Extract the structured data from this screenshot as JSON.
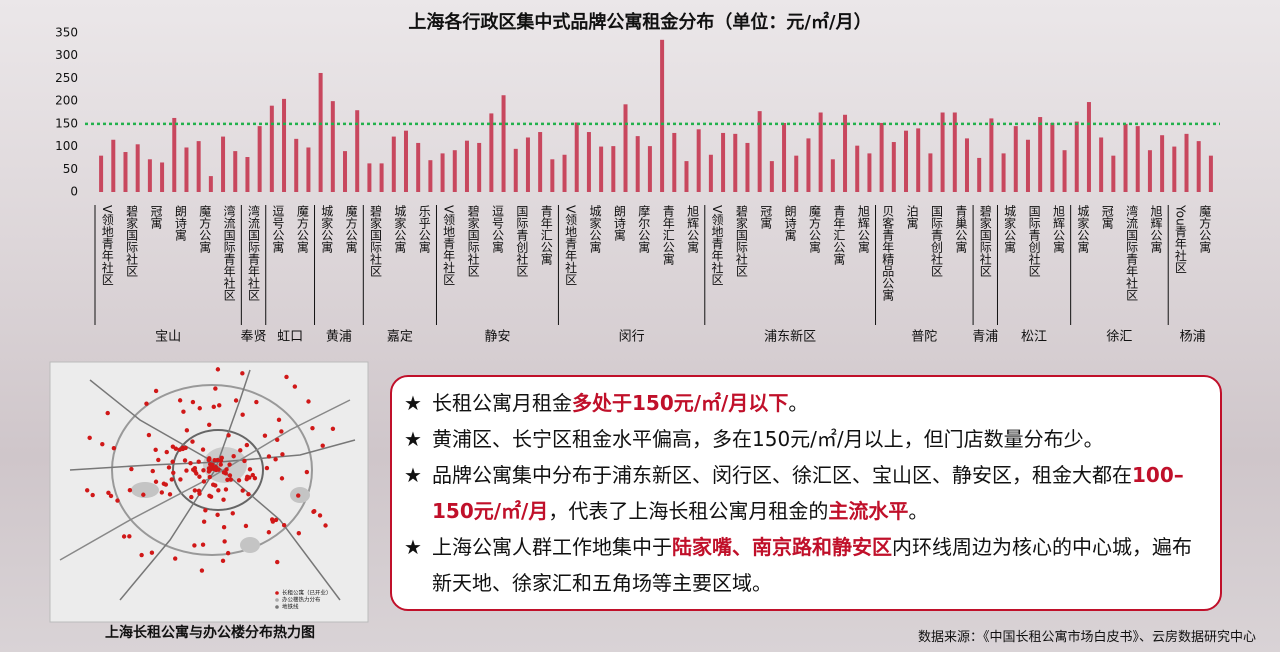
{
  "chart_data": {
    "type": "bar",
    "title": "上海各行政区集中式品牌公寓租金分布（单位：元/㎡/月）",
    "color": "#c8475e",
    "ylim": [
      0,
      350
    ],
    "yticks": [
      0,
      50,
      100,
      150,
      200,
      250,
      300,
      350
    ],
    "reference_line": {
      "value": 150,
      "color": "#22b14c"
    },
    "groups": [
      {
        "name": "宝山",
        "categories": [
          "V领地青年社区",
          null,
          "碧家国际社区",
          null,
          "冠寓",
          null,
          "朗诗寓",
          null,
          "魔方公寓",
          null,
          "湾流国际青年社区",
          null
        ],
        "values": [
          80,
          115,
          88,
          105,
          72,
          65,
          163,
          98,
          112,
          35,
          122,
          90
        ]
      },
      {
        "name": "奉贤",
        "categories": [
          "湾流国际青年社区",
          null
        ],
        "values": [
          77,
          145
        ]
      },
      {
        "name": "虹口",
        "categories": [
          "逗号公寓",
          null,
          "魔方公寓",
          null
        ],
        "values": [
          190,
          205,
          117,
          98
        ]
      },
      {
        "name": "黄浦",
        "categories": [
          "城家公寓",
          null,
          "魔方公寓",
          null
        ],
        "values": [
          262,
          200,
          90,
          180
        ]
      },
      {
        "name": "嘉定",
        "categories": [
          "碧家国际社区",
          null,
          "城家公寓",
          null,
          "乐乎公寓",
          null
        ],
        "values": [
          63,
          63,
          122,
          135,
          108,
          70
        ]
      },
      {
        "name": "静安",
        "categories": [
          "V领地青年社区",
          null,
          "碧家国际社区",
          null,
          "逗号公寓",
          null,
          "国际青创社区",
          null,
          "青年汇公寓",
          null
        ],
        "values": [
          85,
          92,
          113,
          108,
          173,
          213,
          95,
          120,
          132,
          72
        ]
      },
      {
        "name": "闵行",
        "categories": [
          "V领地青年社区",
          null,
          "城家公寓",
          null,
          "朗诗寓",
          null,
          "摩尔公寓",
          null,
          "青年汇公寓",
          null,
          "旭辉公寓",
          null
        ],
        "values": [
          82,
          153,
          132,
          100,
          101,
          193,
          123,
          101,
          335,
          130,
          68,
          138
        ]
      },
      {
        "name": "浦东新区",
        "categories": [
          "V领地青年社区",
          null,
          "碧家国际社区",
          null,
          "冠寓",
          null,
          "朗诗寓",
          null,
          "魔方公寓",
          null,
          "青年汇公寓",
          null,
          "旭辉公寓",
          null
        ],
        "values": [
          82,
          130,
          128,
          108,
          178,
          68,
          152,
          80,
          118,
          175,
          72,
          170,
          102,
          85
        ]
      },
      {
        "name": "普陀",
        "categories": [
          "贝客青年精品公寓",
          null,
          "泊寓",
          null,
          "国际青创社区",
          null,
          "青巢公寓",
          null
        ],
        "values": [
          152,
          110,
          135,
          140,
          85,
          175,
          175,
          118
        ]
      },
      {
        "name": "青浦",
        "categories": [
          "碧家国际社区",
          null
        ],
        "values": [
          75,
          162
        ]
      },
      {
        "name": "松江",
        "categories": [
          "城家公寓",
          null,
          "国际青创社区",
          null,
          "旭辉公寓",
          null
        ],
        "values": [
          85,
          145,
          115,
          165,
          152,
          92
        ]
      },
      {
        "name": "徐汇",
        "categories": [
          "城家公寓",
          null,
          "冠寓",
          null,
          "湾流国际青年社区",
          null,
          "旭辉公寓",
          null
        ],
        "values": [
          155,
          198,
          120,
          80,
          150,
          145,
          92,
          125
        ]
      },
      {
        "name": "杨浦",
        "categories": [
          "You青年社区",
          null,
          "魔方公寓",
          null
        ],
        "values": [
          100,
          128,
          112,
          80
        ]
      }
    ]
  },
  "map": {
    "caption": "上海长租公寓与办公楼分布热力图",
    "legend": [
      "长租公寓（已开业）",
      "办公楼热力分布",
      "地铁线"
    ]
  },
  "notes": {
    "bullet": "★",
    "highlight_color": "#c0102a",
    "items": [
      {
        "parts": [
          {
            "text": "长租公寓月租金"
          },
          {
            "text": "多处于150元/㎡/月以下",
            "highlight": true
          },
          {
            "text": "。"
          }
        ]
      },
      {
        "parts": [
          {
            "text": "黄浦区、长宁区租金水平偏高，多在150元/㎡/月以上，但门店数量分布少。"
          }
        ]
      },
      {
        "parts": [
          {
            "text": "品牌公寓集中分布于浦东新区、闵行区、徐汇区、宝山区、静安区，租金大都在"
          },
          {
            "text": "100–150元/㎡/月",
            "highlight": true
          },
          {
            "text": "，代表了上海长租公寓月租金的"
          },
          {
            "text": "主流水平",
            "highlight": true
          },
          {
            "text": "。"
          }
        ]
      },
      {
        "parts": [
          {
            "text": "上海公寓人群工作地集中于"
          },
          {
            "text": "陆家嘴、南京路和静安区",
            "highlight": true
          },
          {
            "text": "内环线周边为核心的中心城，遍布新天地、徐家汇和五角场等主要区域。"
          }
        ]
      }
    ]
  },
  "source": "数据来源：《中国长租公寓市场白皮书》、云房数据研究中心"
}
